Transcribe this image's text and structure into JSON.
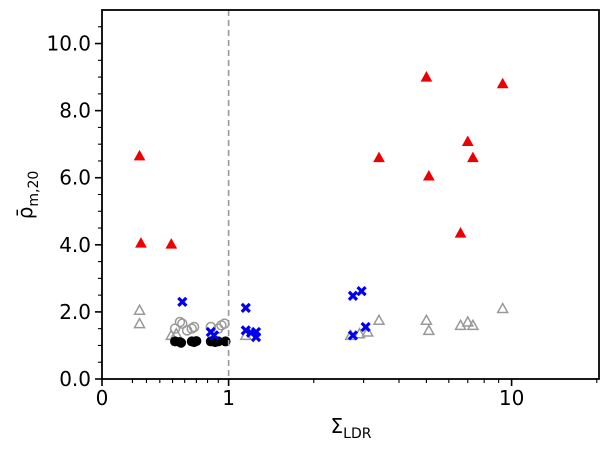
{
  "chart_data": {
    "type": "scatter",
    "xlabel_main": "Σ",
    "xlabel_sub": "LDR",
    "ylabel_main": "ρ̄",
    "ylabel_sub": "m,20",
    "x_scale": "log-like (inferred)",
    "xlim": [
      0,
      20
    ],
    "ylim": [
      0,
      11
    ],
    "reference_line": {
      "x": 1,
      "style": "dashed",
      "color": "#999999"
    },
    "x_ticks": [
      {
        "value": 0,
        "label": "0"
      },
      {
        "value": 1,
        "label": "1"
      },
      {
        "value": 10,
        "label": "10"
      }
    ],
    "y_ticks": [
      {
        "value": 0,
        "label": "0.0"
      },
      {
        "value": 2,
        "label": "2.0"
      },
      {
        "value": 4,
        "label": "4.0"
      },
      {
        "value": 6,
        "label": "6.0"
      },
      {
        "value": 8,
        "label": "8.0"
      },
      {
        "value": 10,
        "label": "10.0"
      }
    ],
    "grid": false,
    "series": [
      {
        "marker": "triangle-filled",
        "color": "#ee0000",
        "points": [
          [
            0.25,
            6.65
          ],
          [
            0.26,
            4.05
          ],
          [
            0.49,
            4.02
          ],
          [
            3.4,
            6.6
          ],
          [
            5.0,
            9.0
          ],
          [
            5.1,
            6.05
          ],
          [
            6.6,
            4.35
          ],
          [
            7.0,
            7.08
          ],
          [
            7.3,
            6.6
          ],
          [
            9.3,
            8.8
          ]
        ]
      },
      {
        "marker": "triangle-open",
        "color": "#999999",
        "points": [
          [
            0.25,
            2.05
          ],
          [
            0.25,
            1.65
          ],
          [
            0.49,
            1.3
          ],
          [
            0.53,
            1.35
          ],
          [
            1.15,
            1.3
          ],
          [
            2.7,
            1.3
          ],
          [
            2.9,
            1.35
          ],
          [
            3.1,
            1.4
          ],
          [
            3.4,
            1.75
          ],
          [
            5.0,
            1.75
          ],
          [
            5.1,
            1.45
          ],
          [
            6.6,
            1.6
          ],
          [
            7.0,
            1.7
          ],
          [
            7.3,
            1.6
          ],
          [
            9.3,
            2.1
          ]
        ]
      },
      {
        "marker": "circle-open",
        "color": "#999999",
        "points": [
          [
            0.52,
            1.5
          ],
          [
            0.56,
            1.7
          ],
          [
            0.58,
            1.65
          ],
          [
            0.62,
            1.45
          ],
          [
            0.66,
            1.5
          ],
          [
            0.68,
            1.55
          ],
          [
            0.83,
            1.55
          ],
          [
            0.9,
            1.5
          ],
          [
            0.93,
            1.6
          ],
          [
            0.96,
            1.65
          ]
        ]
      },
      {
        "marker": "circle-filled",
        "color": "#000000",
        "points": [
          [
            0.52,
            1.12
          ],
          [
            0.56,
            1.1
          ],
          [
            0.57,
            1.08
          ],
          [
            0.66,
            1.12
          ],
          [
            0.68,
            1.1
          ],
          [
            0.7,
            1.13
          ],
          [
            0.83,
            1.12
          ],
          [
            0.87,
            1.1
          ],
          [
            0.9,
            1.12
          ],
          [
            0.97,
            1.12
          ]
        ]
      },
      {
        "marker": "x-filled",
        "color": "#0000ee",
        "points": [
          [
            0.58,
            2.3
          ],
          [
            0.83,
            1.4
          ],
          [
            0.86,
            1.3
          ],
          [
            1.15,
            2.12
          ],
          [
            1.15,
            1.45
          ],
          [
            1.2,
            1.38
          ],
          [
            1.25,
            1.4
          ],
          [
            1.25,
            1.25
          ],
          [
            2.75,
            2.48
          ],
          [
            2.95,
            2.62
          ],
          [
            2.75,
            1.3
          ],
          [
            3.05,
            1.55
          ]
        ]
      }
    ]
  }
}
